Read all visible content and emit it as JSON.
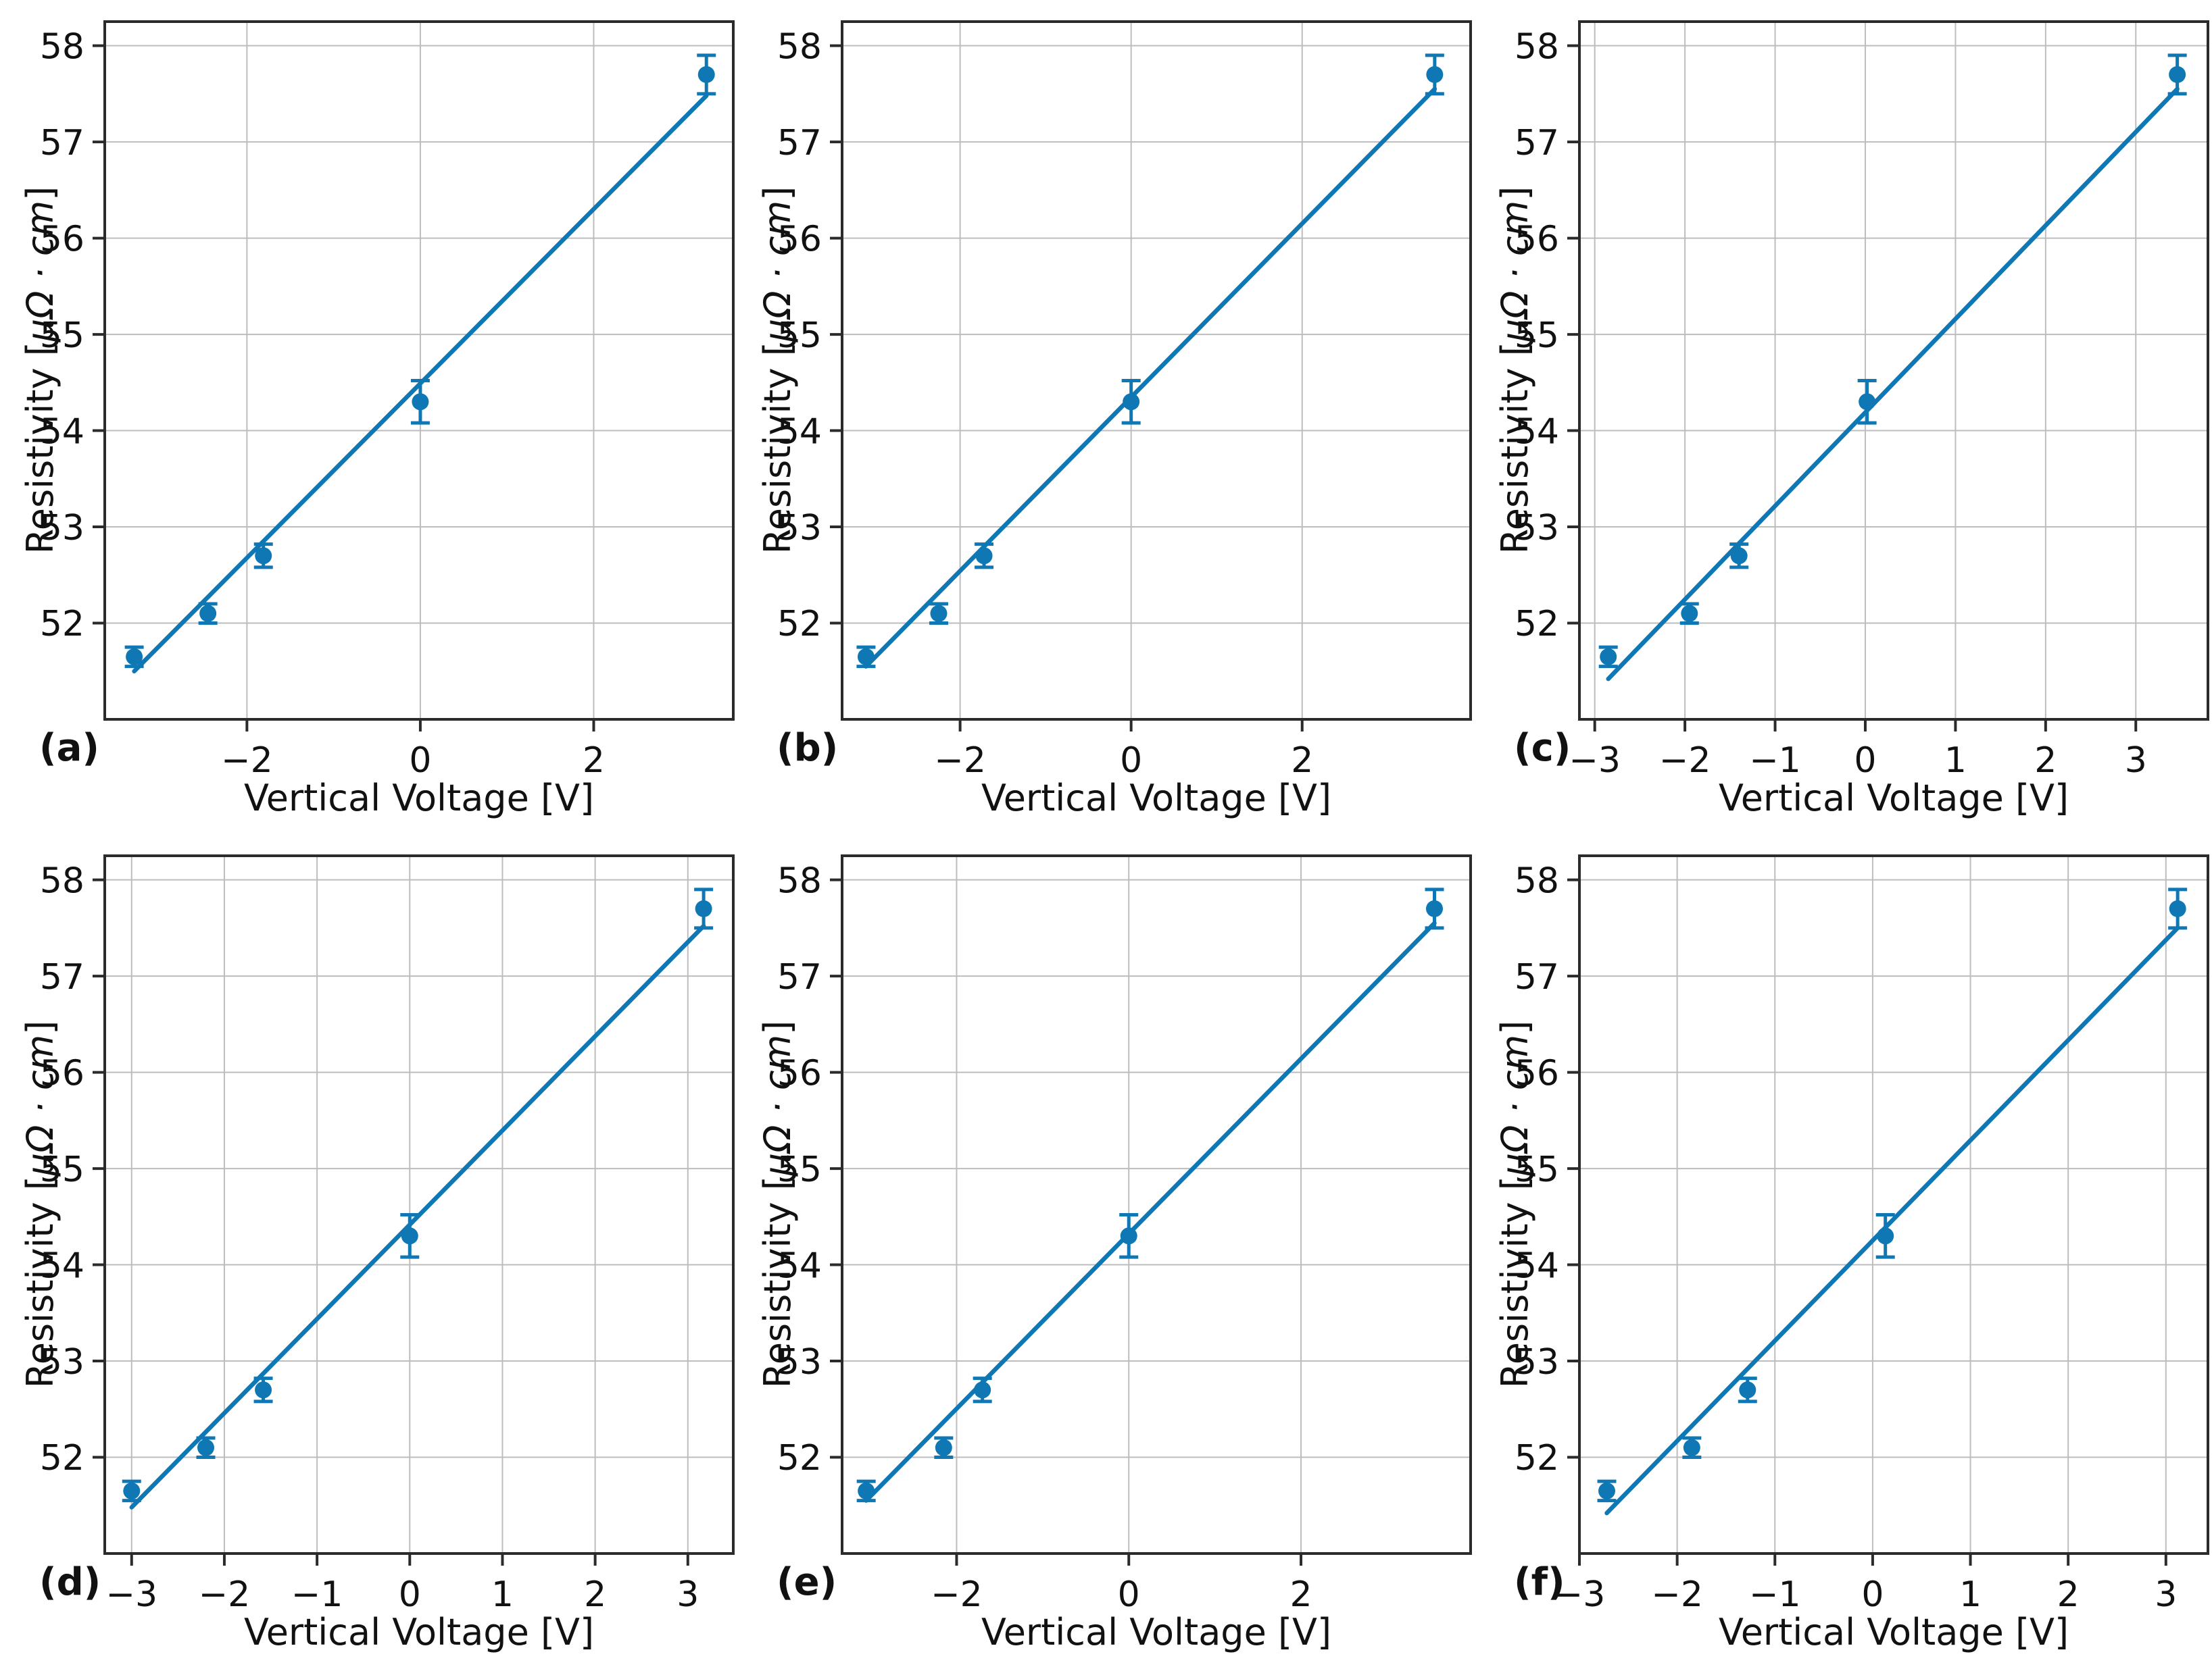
{
  "figure": {
    "description_xlabel": "Vertical Voltage [V]",
    "description_ylabel": "Resistivity [μΩ · cm]"
  },
  "colors": {
    "series": "#0f78b4",
    "grid": "#bdbdbd",
    "frame": "#2b2b2b",
    "tick": "#2b2b2b",
    "text": "#111111",
    "background": "#ffffff"
  },
  "chart_data": [
    {
      "type": "scatter",
      "panel_label": "(a)",
      "xlabel": "Vertical Voltage [V]",
      "ylabel_prefix": "Resistivity [",
      "ylabel_units": "μΩ · cm",
      "ylabel_suffix": "]",
      "x": [
        -3.3,
        -2.45,
        -1.81,
        0.0,
        3.3
      ],
      "y": [
        51.65,
        52.1,
        52.7,
        54.3,
        57.7
      ],
      "yerr": [
        0.1,
        0.1,
        0.12,
        0.22,
        0.2
      ],
      "fit": {
        "x1": -3.3,
        "y1": 51.5,
        "x2": 3.3,
        "y2": 57.48
      },
      "xlim": [
        -3.64,
        3.61
      ],
      "ylim": [
        51.0,
        58.25
      ],
      "xticks": [
        -2,
        0,
        2
      ],
      "yticks": [
        52,
        53,
        54,
        55,
        56,
        57,
        58
      ],
      "grid": true,
      "legend": "none"
    },
    {
      "type": "scatter",
      "panel_label": "(b)",
      "xlabel": "Vertical Voltage [V]",
      "ylabel_prefix": "Resistivity [",
      "ylabel_units": "μΩ · cm",
      "ylabel_suffix": "]",
      "x": [
        -3.1,
        -2.25,
        -1.72,
        0.0,
        3.55
      ],
      "y": [
        51.65,
        52.1,
        52.7,
        54.3,
        57.7
      ],
      "yerr": [
        0.1,
        0.1,
        0.12,
        0.22,
        0.2
      ],
      "fit": {
        "x1": -3.1,
        "y1": 51.55,
        "x2": 3.55,
        "y2": 57.55
      },
      "xlim": [
        -3.38,
        3.97
      ],
      "ylim": [
        51.0,
        58.25
      ],
      "xticks": [
        -2,
        0,
        2
      ],
      "yticks": [
        52,
        53,
        54,
        55,
        56,
        57,
        58
      ],
      "grid": true,
      "legend": "none"
    },
    {
      "type": "scatter",
      "panel_label": "(c)",
      "xlabel": "Vertical Voltage [V]",
      "ylabel_prefix": "Resistivity [",
      "ylabel_units": "μΩ · cm",
      "ylabel_suffix": "]",
      "x": [
        -2.85,
        -1.95,
        -1.4,
        0.02,
        3.46
      ],
      "y": [
        51.65,
        52.1,
        52.7,
        54.3,
        57.7
      ],
      "yerr": [
        0.1,
        0.1,
        0.12,
        0.22,
        0.2
      ],
      "fit": {
        "x1": -2.85,
        "y1": 51.42,
        "x2": 3.46,
        "y2": 57.55
      },
      "xlim": [
        -3.17,
        3.8
      ],
      "ylim": [
        51.0,
        58.25
      ],
      "xticks": [
        -3,
        -2,
        -1,
        0,
        1,
        2,
        3
      ],
      "yticks": [
        52,
        53,
        54,
        55,
        56,
        57,
        58
      ],
      "grid": true,
      "legend": "none"
    },
    {
      "type": "scatter",
      "panel_label": "(d)",
      "xlabel": "Vertical Voltage [V]",
      "ylabel_prefix": "Resistivity [",
      "ylabel_units": "μΩ · cm",
      "ylabel_suffix": "]",
      "x": [
        -3.0,
        -2.2,
        -1.58,
        0.0,
        3.17
      ],
      "y": [
        51.65,
        52.1,
        52.7,
        54.3,
        57.7
      ],
      "yerr": [
        0.1,
        0.1,
        0.12,
        0.22,
        0.2
      ],
      "fit": {
        "x1": -3.0,
        "y1": 51.48,
        "x2": 3.17,
        "y2": 57.52
      },
      "xlim": [
        -3.29,
        3.49
      ],
      "ylim": [
        51.0,
        58.25
      ],
      "xticks": [
        -3,
        -2,
        -1,
        0,
        1,
        2,
        3
      ],
      "yticks": [
        52,
        53,
        54,
        55,
        56,
        57,
        58
      ],
      "grid": true,
      "legend": "none"
    },
    {
      "type": "scatter",
      "panel_label": "(e)",
      "xlabel": "Vertical Voltage [V]",
      "ylabel_prefix": "Resistivity [",
      "ylabel_units": "μΩ · cm",
      "ylabel_suffix": "]",
      "x": [
        -3.05,
        -2.15,
        -1.7,
        0.0,
        3.55
      ],
      "y": [
        51.65,
        52.1,
        52.7,
        54.3,
        57.7
      ],
      "yerr": [
        0.1,
        0.1,
        0.12,
        0.22,
        0.2
      ],
      "fit": {
        "x1": -3.05,
        "y1": 51.55,
        "x2": 3.55,
        "y2": 57.55
      },
      "xlim": [
        -3.33,
        3.97
      ],
      "ylim": [
        51.0,
        58.25
      ],
      "xticks": [
        -2,
        0,
        2
      ],
      "yticks": [
        52,
        53,
        54,
        55,
        56,
        57,
        58
      ],
      "grid": true,
      "legend": "none"
    },
    {
      "type": "scatter",
      "panel_label": "(f)",
      "xlabel": "Vertical Voltage [V]",
      "ylabel_prefix": "Resistivity [",
      "ylabel_units": "μΩ · cm",
      "ylabel_suffix": "]",
      "x": [
        -2.72,
        -1.85,
        -1.28,
        0.13,
        3.12
      ],
      "y": [
        51.65,
        52.1,
        52.7,
        54.3,
        57.7
      ],
      "yerr": [
        0.1,
        0.1,
        0.12,
        0.22,
        0.2
      ],
      "fit": {
        "x1": -2.72,
        "y1": 51.42,
        "x2": 3.12,
        "y2": 57.5
      },
      "xlim": [
        -3.0,
        3.43
      ],
      "ylim": [
        51.0,
        58.25
      ],
      "xticks": [
        -3,
        -2,
        -1,
        0,
        1,
        2,
        3
      ],
      "yticks": [
        52,
        53,
        54,
        55,
        56,
        57,
        58
      ],
      "grid": true,
      "legend": "none"
    }
  ]
}
